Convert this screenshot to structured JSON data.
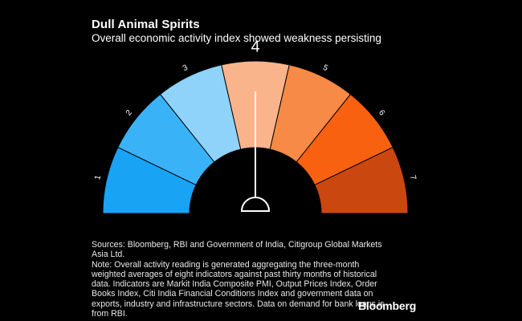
{
  "title": "Dull Animal Spirits",
  "subtitle": "Overall economic activity index showed weakness persisting",
  "chart_data": {
    "type": "gauge",
    "segments": [
      {
        "label": "1",
        "color": "#19a3f5"
      },
      {
        "label": "2",
        "color": "#3ab2f7"
      },
      {
        "label": "3",
        "color": "#8fd3fb"
      },
      {
        "label": "4",
        "color": "#f9b48c"
      },
      {
        "label": "5",
        "color": "#f78a46"
      },
      {
        "label": "6",
        "color": "#f86110"
      },
      {
        "label": "7",
        "color": "#cb4710"
      }
    ],
    "value": 4,
    "value_label": "4",
    "range": [
      1,
      7
    ],
    "title": "Dull Animal Spirits",
    "subtitle": "Overall economic activity index showed weakness persisting"
  },
  "footer": {
    "sources": "Sources: Bloomberg, RBI and Government of India, Citigroup Global Markets Asia Ltd.",
    "note": "Note: Overall activity reading is generated aggregating the three-month weighted averages of eight indicators against past thirty months of historical data. Indicators are Markit India Composite PMI, Output Prices Index, Order Books Index, Citi India Financial Conditions Index and government data on exports, industry and infrastructure sectors. Data on demand for bank loans is from RBI."
  },
  "brand": "Bloomberg"
}
